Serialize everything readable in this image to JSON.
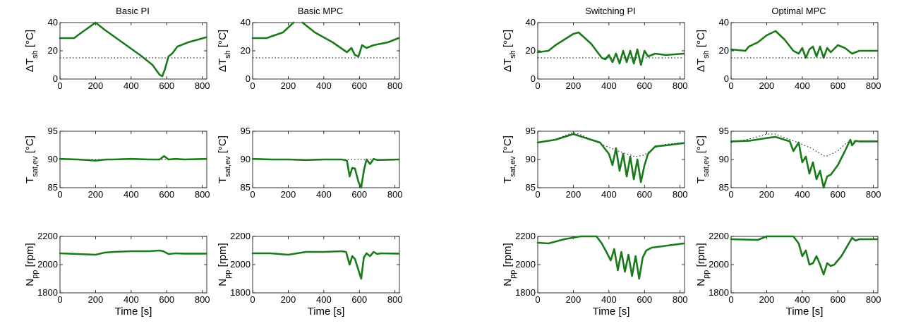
{
  "figure": {
    "column_titles": [
      "Basic PI",
      "Basic MPC",
      "Switching PI",
      "Optimal MPC"
    ],
    "x_label": "Time [s]",
    "row_ylabels": [
      {
        "main": "ΔT",
        "sub": "sh",
        "unit": " [°C]"
      },
      {
        "main": "T",
        "sub": "sat,ev",
        "unit": " [°C]"
      },
      {
        "main": "N",
        "sub": "pp",
        "unit": " [rpm]"
      }
    ]
  },
  "colors": {
    "series": "#1a7a1a",
    "reference": "#000000"
  },
  "chart_data": [
    {
      "type": "line",
      "title": "Basic PI",
      "row": 0,
      "col": 0,
      "xlim": [
        0,
        825
      ],
      "ylim": [
        0,
        40
      ],
      "xticks": [
        0,
        200,
        400,
        600,
        800
      ],
      "yticks": [
        0,
        20,
        40
      ],
      "series": [
        {
          "x": [
            0,
            80,
            100,
            200,
            250,
            350,
            450,
            520,
            560,
            575,
            590,
            610,
            630,
            660,
            720,
            820
          ],
          "y": [
            29,
            29,
            31,
            40,
            35,
            26,
            17,
            10,
            3,
            2,
            7,
            16,
            18,
            23,
            26,
            29.5
          ]
        }
      ],
      "reference": {
        "x": [
          0,
          820
        ],
        "y": [
          15,
          15
        ]
      }
    },
    {
      "type": "line",
      "title": "Basic MPC",
      "row": 0,
      "col": 1,
      "xlim": [
        0,
        825
      ],
      "ylim": [
        0,
        40
      ],
      "xticks": [
        0,
        200,
        400,
        600,
        800
      ],
      "yticks": [
        0,
        20,
        40
      ],
      "series": [
        {
          "x": [
            0,
            80,
            100,
            170,
            230
          ],
          "y": [
            29,
            29,
            30,
            33,
            40
          ]
        },
        {
          "x": [
            280,
            350,
            450,
            530,
            555,
            575,
            595,
            615,
            640,
            680,
            760,
            820
          ],
          "y": [
            40,
            33,
            26,
            19,
            22,
            17,
            16,
            24,
            22,
            24,
            26,
            29
          ]
        }
      ],
      "reference": {
        "x": [
          0,
          820
        ],
        "y": [
          15,
          15
        ]
      }
    },
    {
      "type": "line",
      "title": "Switching PI",
      "row": 0,
      "col": 2,
      "xlim": [
        0,
        825
      ],
      "ylim": [
        0,
        40
      ],
      "xticks": [
        0,
        200,
        400,
        600,
        800
      ],
      "yticks": [
        0,
        20,
        40
      ],
      "series": [
        {
          "x": [
            0,
            60,
            100,
            200,
            230,
            300,
            360,
            380,
            400,
            420,
            440,
            460,
            480,
            500,
            520,
            540,
            560,
            580,
            600,
            620,
            660,
            720,
            820
          ],
          "y": [
            19,
            20,
            24,
            32,
            33,
            25,
            15,
            14,
            17,
            12,
            18,
            11,
            20,
            12,
            20,
            11,
            21,
            10,
            20,
            16,
            18,
            17,
            18
          ]
        }
      ],
      "reference": {
        "x": [
          0,
          820
        ],
        "y": [
          15,
          15
        ]
      }
    },
    {
      "type": "line",
      "title": "Optimal MPC",
      "row": 0,
      "col": 3,
      "xlim": [
        0,
        825
      ],
      "ylim": [
        0,
        40
      ],
      "xticks": [
        0,
        200,
        400,
        600,
        800
      ],
      "yticks": [
        0,
        20,
        40
      ],
      "series": [
        {
          "x": [
            0,
            80,
            100,
            150,
            200,
            250,
            300,
            350,
            380,
            400,
            420,
            440,
            460,
            480,
            500,
            520,
            540,
            560,
            600,
            640,
            680,
            720,
            820
          ],
          "y": [
            21,
            20,
            23,
            26,
            31,
            34,
            28,
            20,
            18,
            22,
            15,
            21,
            23,
            16,
            23,
            15,
            22,
            19,
            24,
            22,
            18,
            20,
            20
          ]
        }
      ],
      "reference": {
        "x": [
          0,
          820
        ],
        "y": [
          15,
          15
        ]
      }
    },
    {
      "type": "line",
      "row": 1,
      "col": 0,
      "xlim": [
        0,
        825
      ],
      "ylim": [
        85,
        95
      ],
      "xticks": [
        0,
        200,
        400,
        600,
        800
      ],
      "yticks": [
        85,
        90,
        95
      ],
      "series": [
        {
          "x": [
            0,
            100,
            200,
            260,
            300,
            400,
            500,
            560,
            585,
            610,
            650,
            700,
            820
          ],
          "y": [
            90.1,
            90.0,
            89.8,
            90.0,
            90.0,
            90.1,
            90.0,
            90.0,
            90.6,
            90.0,
            90.1,
            90.0,
            90.1
          ]
        }
      ],
      "reference": {
        "x": [
          0,
          820
        ],
        "y": [
          90,
          90
        ]
      }
    },
    {
      "type": "line",
      "row": 1,
      "col": 1,
      "xlim": [
        0,
        825
      ],
      "ylim": [
        85,
        95
      ],
      "xticks": [
        0,
        200,
        400,
        600,
        800
      ],
      "yticks": [
        85,
        90,
        95
      ],
      "series": [
        {
          "x": [
            0,
            100,
            200,
            300,
            400,
            500,
            530,
            545,
            560,
            575,
            595,
            610,
            625,
            640,
            660,
            680,
            700,
            820
          ],
          "y": [
            90.1,
            90.0,
            90.0,
            89.9,
            90.0,
            90.0,
            89.8,
            87,
            88.5,
            88.4,
            86,
            85,
            88,
            90,
            89.2,
            90.1,
            89.9,
            90.0
          ]
        }
      ],
      "reference": {
        "x": [
          0,
          820
        ],
        "y": [
          90,
          90
        ]
      }
    },
    {
      "type": "line",
      "row": 1,
      "col": 2,
      "xlim": [
        0,
        825
      ],
      "ylim": [
        85,
        95
      ],
      "xticks": [
        0,
        200,
        400,
        600,
        800
      ],
      "yticks": [
        85,
        90,
        95
      ],
      "series": [
        {
          "x": [
            0,
            100,
            200,
            250,
            350,
            400,
            420,
            440,
            460,
            480,
            500,
            520,
            540,
            560,
            580,
            600,
            620,
            660,
            720,
            820
          ],
          "y": [
            93,
            93.5,
            94.5,
            94,
            93,
            91,
            89,
            92,
            88,
            91,
            87,
            90.5,
            86.5,
            90,
            86,
            89,
            91,
            92.3,
            92.5,
            92.9
          ]
        }
      ],
      "reference": {
        "x": [
          0,
          100,
          200,
          250,
          350,
          450,
          550,
          600,
          650,
          720,
          820
        ],
        "y": [
          93,
          93.6,
          94.8,
          94.3,
          92.8,
          91.5,
          90.5,
          90.8,
          92,
          92.7,
          93
        ]
      }
    },
    {
      "type": "line",
      "row": 1,
      "col": 3,
      "xlim": [
        0,
        825
      ],
      "ylim": [
        85,
        95
      ],
      "xticks": [
        0,
        200,
        400,
        600,
        800
      ],
      "yticks": [
        85,
        90,
        95
      ],
      "series": [
        {
          "x": [
            0,
            100,
            200,
            250,
            300,
            330,
            350,
            380,
            400,
            420,
            440,
            460,
            480,
            500,
            520,
            540,
            560,
            600,
            640,
            670,
            680,
            700,
            720,
            820
          ],
          "y": [
            93.2,
            93.3,
            93.8,
            94,
            93.5,
            93.2,
            91.5,
            93,
            89.5,
            90.5,
            87.5,
            89.5,
            86.5,
            88,
            85,
            87,
            87.3,
            89,
            91.5,
            93.5,
            92.5,
            93.3,
            93.2,
            93.2
          ]
        }
      ],
      "reference": {
        "x": [
          0,
          100,
          200,
          250,
          350,
          450,
          530,
          600,
          650,
          700,
          820
        ],
        "y": [
          93,
          93.6,
          94.5,
          94.5,
          93.3,
          92,
          90.5,
          91.5,
          93,
          93.3,
          93.3
        ]
      }
    },
    {
      "type": "line",
      "row": 2,
      "col": 0,
      "xlim": [
        0,
        825
      ],
      "ylim": [
        1800,
        2200
      ],
      "xticks": [
        0,
        200,
        400,
        600,
        800
      ],
      "yticks": [
        1800,
        2000,
        2200
      ],
      "series": [
        {
          "x": [
            0,
            100,
            200,
            250,
            300,
            400,
            500,
            560,
            580,
            610,
            650,
            700,
            820
          ],
          "y": [
            2080,
            2075,
            2070,
            2085,
            2090,
            2095,
            2095,
            2100,
            2095,
            2075,
            2080,
            2078,
            2078
          ]
        }
      ]
    },
    {
      "type": "line",
      "row": 2,
      "col": 1,
      "xlim": [
        0,
        825
      ],
      "ylim": [
        1800,
        2200
      ],
      "xticks": [
        0,
        200,
        400,
        600,
        800
      ],
      "yticks": [
        1800,
        2000,
        2200
      ],
      "series": [
        {
          "x": [
            0,
            100,
            200,
            300,
            400,
            500,
            525,
            545,
            560,
            575,
            595,
            610,
            625,
            640,
            660,
            680,
            700,
            720,
            820
          ],
          "y": [
            2080,
            2080,
            2070,
            2090,
            2090,
            2095,
            2090,
            2000,
            2060,
            2040,
            1960,
            1900,
            2050,
            2080,
            2060,
            2090,
            2075,
            2080,
            2078
          ]
        }
      ]
    },
    {
      "type": "line",
      "row": 2,
      "col": 2,
      "xlim": [
        0,
        825
      ],
      "ylim": [
        1800,
        2200
      ],
      "xticks": [
        0,
        200,
        400,
        600,
        800
      ],
      "yticks": [
        1800,
        2000,
        2200
      ],
      "series": [
        {
          "x": [
            0,
            60,
            150,
            240,
            330,
            360,
            390,
            410,
            430,
            450,
            470,
            490,
            510,
            530,
            550,
            570,
            590,
            610,
            640,
            700,
            820
          ],
          "y": [
            2155,
            2150,
            2180,
            2200,
            2200,
            2150,
            2080,
            2030,
            2110,
            1960,
            2090,
            1950,
            2070,
            1920,
            2060,
            1900,
            2050,
            2100,
            2120,
            2130,
            2150
          ]
        }
      ]
    },
    {
      "type": "line",
      "row": 2,
      "col": 3,
      "xlim": [
        0,
        825
      ],
      "ylim": [
        1800,
        2200
      ],
      "xticks": [
        0,
        200,
        400,
        600,
        800
      ],
      "yticks": [
        1800,
        2000,
        2200
      ],
      "series": [
        {
          "x": [
            0,
            150,
            180,
            200,
            350,
            380,
            400,
            420,
            440,
            460,
            480,
            500,
            520,
            540,
            560,
            580,
            620,
            680,
            700,
            720,
            820
          ],
          "y": [
            2180,
            2175,
            2190,
            2200,
            2200,
            2150,
            2060,
            2100,
            2000,
            2010,
            2060,
            2000,
            1930,
            2010,
            1990,
            2000,
            2060,
            2190,
            2170,
            2180,
            2180
          ]
        }
      ]
    }
  ]
}
